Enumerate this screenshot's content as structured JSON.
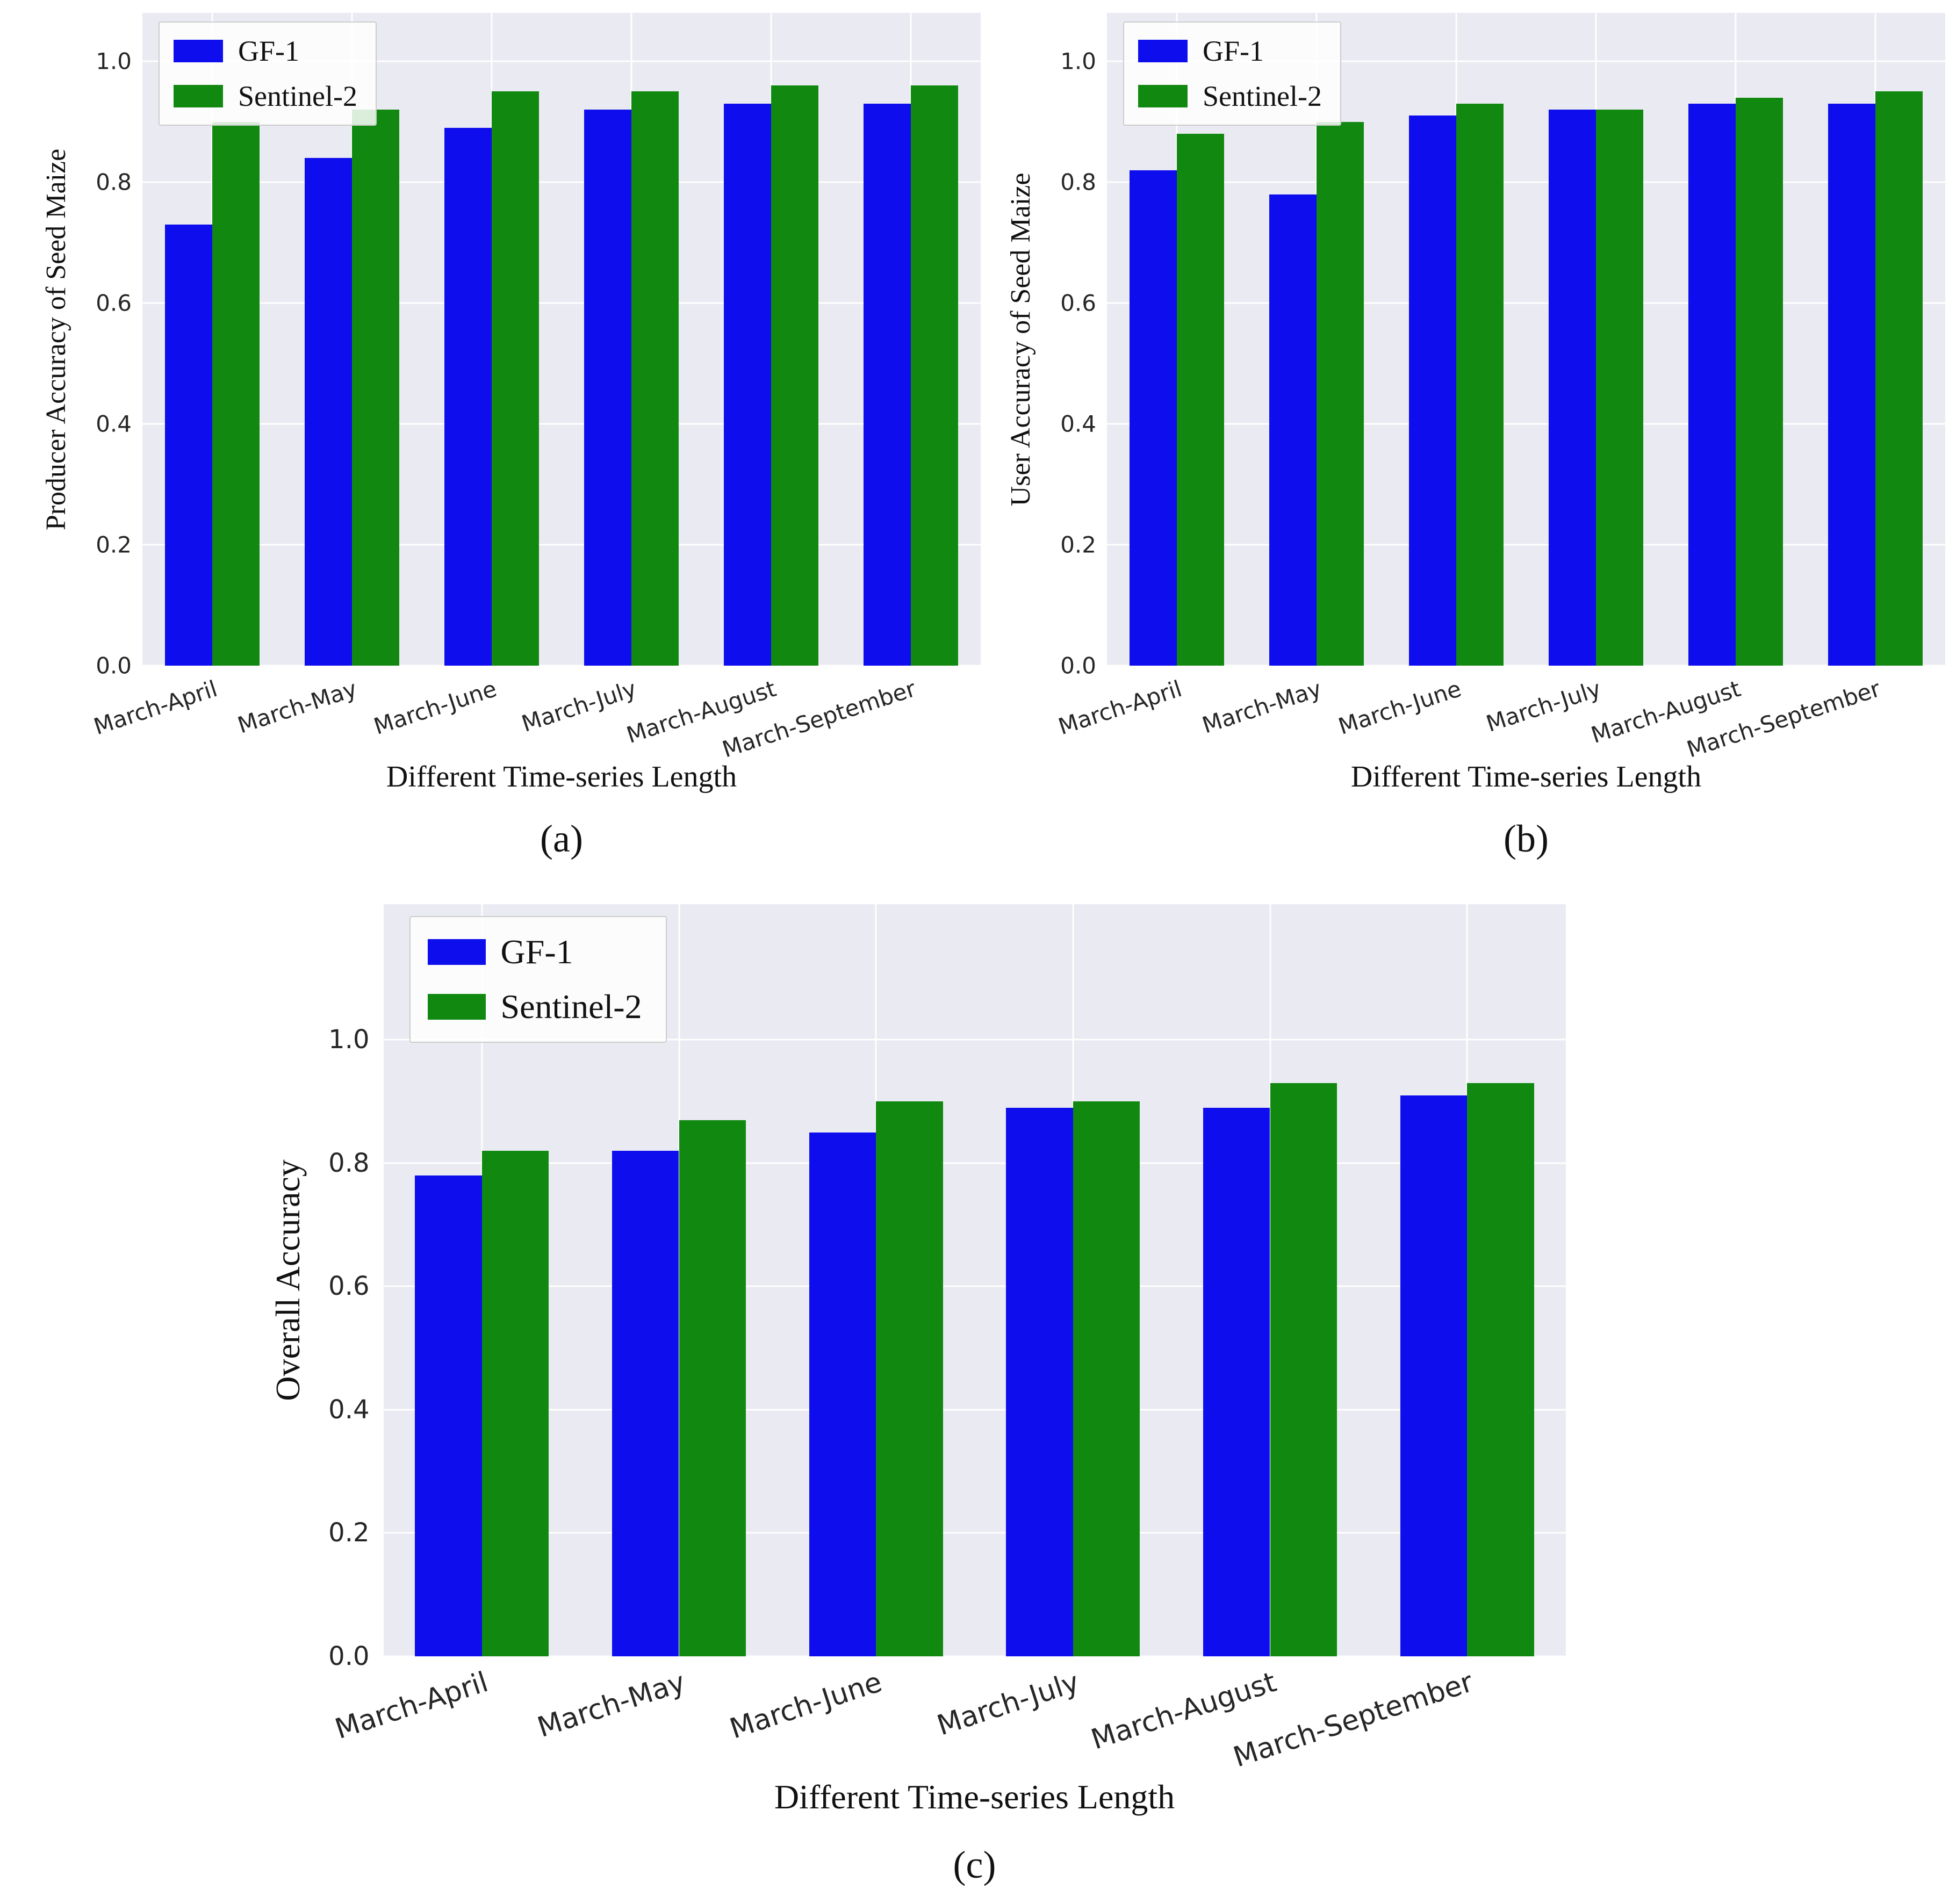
{
  "style": {
    "plot_background": "#eaeaf2",
    "grid_color": "#ffffff",
    "bar_blue": "#0d0dee",
    "bar_green": "#118911"
  },
  "chart_data": [
    {
      "id": "a",
      "type": "bar",
      "caption": "(a)",
      "title": "",
      "ylabel": "Producer Accuracy of Seed Maize",
      "xlabel": "Different Time-series Length",
      "categories": [
        "March-April",
        "March-May",
        "March-June",
        "March-July",
        "March-August",
        "March-September"
      ],
      "series": [
        {
          "name": "GF-1",
          "color": "#0d0dee",
          "values": [
            0.73,
            0.84,
            0.89,
            0.92,
            0.93,
            0.93
          ]
        },
        {
          "name": "Sentinel-2",
          "color": "#118911",
          "values": [
            0.9,
            0.92,
            0.95,
            0.95,
            0.96,
            0.96
          ]
        }
      ],
      "yticks": [
        0.0,
        0.2,
        0.4,
        0.6,
        0.8,
        1.0
      ],
      "ylim": [
        0,
        1.08
      ],
      "grid": true,
      "legend_position": "upper left"
    },
    {
      "id": "b",
      "type": "bar",
      "caption": "(b)",
      "title": "",
      "ylabel": "User Accuracy of Seed Maize",
      "xlabel": "Different Time-series Length",
      "categories": [
        "March-April",
        "March-May",
        "March-June",
        "March-July",
        "March-August",
        "March-September"
      ],
      "series": [
        {
          "name": "GF-1",
          "color": "#0d0dee",
          "values": [
            0.82,
            0.78,
            0.91,
            0.92,
            0.93,
            0.93
          ]
        },
        {
          "name": "Sentinel-2",
          "color": "#118911",
          "values": [
            0.88,
            0.9,
            0.93,
            0.92,
            0.94,
            0.95
          ]
        }
      ],
      "yticks": [
        0.0,
        0.2,
        0.4,
        0.6,
        0.8,
        1.0
      ],
      "ylim": [
        0,
        1.08
      ],
      "grid": true,
      "legend_position": "upper left"
    },
    {
      "id": "c",
      "type": "bar",
      "caption": "(c)",
      "title": "",
      "ylabel": "Overall Accuracy",
      "xlabel": "Different Time-series Length",
      "categories": [
        "March-April",
        "March-May",
        "March-June",
        "March-July",
        "March-August",
        "March-September"
      ],
      "series": [
        {
          "name": "GF-1",
          "color": "#0d0dee",
          "values": [
            0.78,
            0.82,
            0.85,
            0.89,
            0.89,
            0.91
          ]
        },
        {
          "name": "Sentinel-2",
          "color": "#118911",
          "values": [
            0.82,
            0.87,
            0.9,
            0.9,
            0.93,
            0.93
          ]
        }
      ],
      "yticks": [
        0.0,
        0.2,
        0.4,
        0.6,
        0.8,
        1.0
      ],
      "ylim": [
        0,
        1.22
      ],
      "grid": true,
      "legend_position": "upper left"
    }
  ]
}
